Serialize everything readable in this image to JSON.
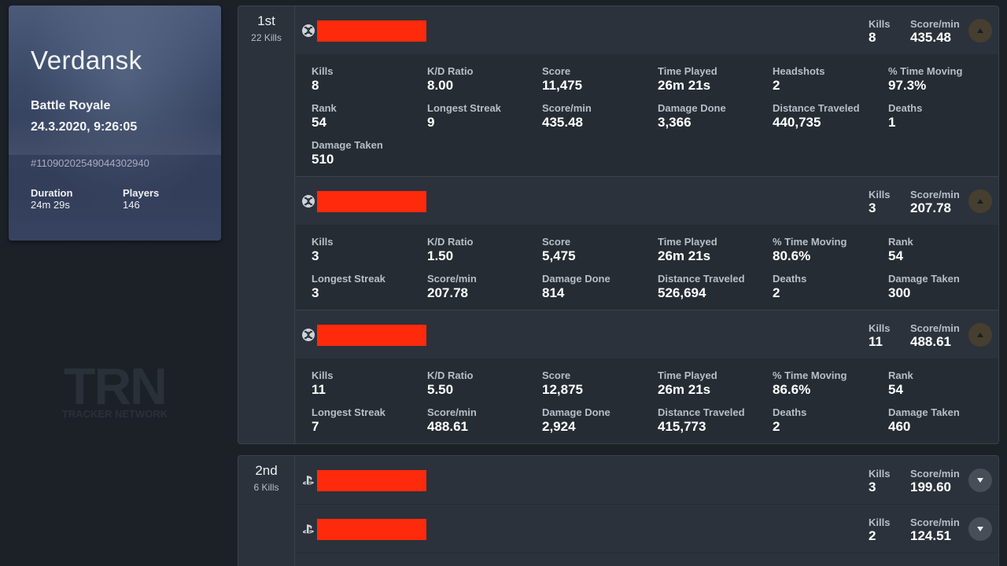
{
  "match": {
    "map": "Verdansk",
    "mode": "Battle Royale",
    "datetime": "24.3.2020, 9:26:05",
    "id": "#11090202549044302940",
    "duration_label": "Duration",
    "duration": "24m 29s",
    "players_label": "Players",
    "players": "146"
  },
  "watermark": {
    "big": "TRN",
    "small": "TRACKER NETWORK"
  },
  "colors": {
    "accent": "#ff2a0c",
    "background": "#1c2128",
    "panel": "#2b323b"
  },
  "head_labels": {
    "kills": "Kills",
    "score_min": "Score/min"
  },
  "teams": [
    {
      "place": "1st",
      "kills": "22 Kills",
      "players": [
        {
          "platform": "xbox-icon",
          "kills": "8",
          "score_min": "435.48",
          "expanded": true,
          "stats": [
            {
              "label": "Kills",
              "value": "8"
            },
            {
              "label": "K/D Ratio",
              "value": "8.00"
            },
            {
              "label": "Score",
              "value": "11,475"
            },
            {
              "label": "Time Played",
              "value": "26m 21s"
            },
            {
              "label": "Headshots",
              "value": "2"
            },
            {
              "label": "% Time Moving",
              "value": "97.3%"
            },
            {
              "label": "Rank",
              "value": "54"
            },
            {
              "label": "Longest Streak",
              "value": "9"
            },
            {
              "label": "Score/min",
              "value": "435.48"
            },
            {
              "label": "Damage Done",
              "value": "3,366"
            },
            {
              "label": "Distance Traveled",
              "value": "440,735"
            },
            {
              "label": "Deaths",
              "value": "1"
            },
            {
              "label": "Damage Taken",
              "value": "510"
            }
          ]
        },
        {
          "platform": "xbox-icon",
          "kills": "3",
          "score_min": "207.78",
          "expanded": true,
          "stats": [
            {
              "label": "Kills",
              "value": "3"
            },
            {
              "label": "K/D Ratio",
              "value": "1.50"
            },
            {
              "label": "Score",
              "value": "5,475"
            },
            {
              "label": "Time Played",
              "value": "26m 21s"
            },
            {
              "label": "% Time Moving",
              "value": "80.6%"
            },
            {
              "label": "Rank",
              "value": "54"
            },
            {
              "label": "Longest Streak",
              "value": "3"
            },
            {
              "label": "Score/min",
              "value": "207.78"
            },
            {
              "label": "Damage Done",
              "value": "814"
            },
            {
              "label": "Distance Traveled",
              "value": "526,694"
            },
            {
              "label": "Deaths",
              "value": "2"
            },
            {
              "label": "Damage Taken",
              "value": "300"
            }
          ]
        },
        {
          "platform": "xbox-icon",
          "kills": "11",
          "score_min": "488.61",
          "expanded": true,
          "stats": [
            {
              "label": "Kills",
              "value": "11"
            },
            {
              "label": "K/D Ratio",
              "value": "5.50"
            },
            {
              "label": "Score",
              "value": "12,875"
            },
            {
              "label": "Time Played",
              "value": "26m 21s"
            },
            {
              "label": "% Time Moving",
              "value": "86.6%"
            },
            {
              "label": "Rank",
              "value": "54"
            },
            {
              "label": "Longest Streak",
              "value": "7"
            },
            {
              "label": "Score/min",
              "value": "488.61"
            },
            {
              "label": "Damage Done",
              "value": "2,924"
            },
            {
              "label": "Distance Traveled",
              "value": "415,773"
            },
            {
              "label": "Deaths",
              "value": "2"
            },
            {
              "label": "Damage Taken",
              "value": "460"
            }
          ]
        }
      ]
    },
    {
      "place": "2nd",
      "kills": "6 Kills",
      "players": [
        {
          "platform": "playstation-icon",
          "kills": "3",
          "score_min": "199.60",
          "expanded": false
        },
        {
          "platform": "playstation-icon",
          "kills": "2",
          "score_min": "124.51",
          "expanded": false
        }
      ]
    }
  ]
}
